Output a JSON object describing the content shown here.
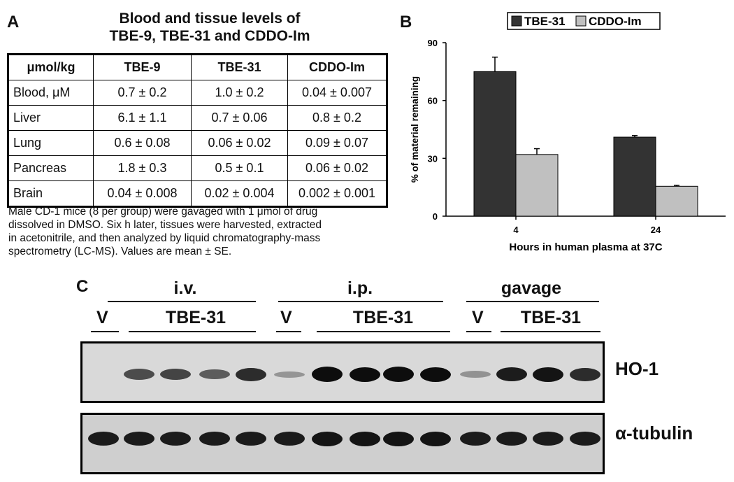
{
  "panel_a": {
    "letter": "A",
    "title_line1": "Blood and tissue levels of",
    "title_line2": "TBE-9, TBE-31 and CDDO-Im",
    "headers": [
      "μmol/kg",
      "TBE-9",
      "TBE-31",
      "CDDO-Im"
    ],
    "rows": [
      {
        "label": "Blood, μM",
        "values": [
          "0.7 ± 0.2",
          "1.0 ± 0.2",
          "0.04 ± 0.007"
        ]
      },
      {
        "label": "Liver",
        "values": [
          "6.1 ± 1.1",
          "0.7 ± 0.06",
          "0.8 ± 0.2"
        ]
      },
      {
        "label": "Lung",
        "values": [
          "0.6 ± 0.08",
          "0.06 ± 0.02",
          "0.09 ± 0.07"
        ]
      },
      {
        "label": "Pancreas",
        "values": [
          "1.8 ± 0.3",
          "0.5 ± 0.1",
          "0.06 ± 0.02"
        ]
      },
      {
        "label": "Brain",
        "values": [
          "0.04 ± 0.008",
          "0.02 ± 0.004",
          "0.002 ± 0.001"
        ]
      }
    ],
    "caption_lines": [
      "Male CD-1 mice (8 per group) were gavaged with 1 μmol of drug",
      "dissolved in DMSO.  Six h later, tissues were harvested, extracted",
      "in acetonitrile, and then analyzed by liquid chromatography-mass",
      "spectrometry (LC-MS).  Values are mean ± SE."
    ]
  },
  "panel_b": {
    "letter": "B"
  },
  "chart_data": {
    "type": "bar",
    "categories": [
      "4",
      "24"
    ],
    "series": [
      {
        "name": "TBE-31",
        "color": "#333333",
        "values": [
          75,
          41
        ],
        "errors": [
          7.5,
          0.8
        ]
      },
      {
        "name": "CDDO-Im",
        "color": "#c0c0c0",
        "values": [
          32,
          15.5
        ],
        "errors": [
          3,
          0.5
        ]
      }
    ],
    "xlabel": "Hours in human plasma at 37C",
    "ylabel": "% of material remaining",
    "yticks": [
      0,
      30,
      60,
      90
    ],
    "ylim": [
      0,
      90
    ],
    "legend_position": "top"
  },
  "panel_c": {
    "letter": "C",
    "groups": [
      "i.v.",
      "i.p.",
      "gavage"
    ],
    "lane_labels": {
      "vehicle": "V",
      "drug": "TBE-31"
    },
    "blots": [
      {
        "label": "HO-1",
        "lane_intensities": [
          0.0,
          0.55,
          0.6,
          0.45,
          0.75,
          0.1,
          1.0,
          0.95,
          1.0,
          0.95,
          0.12,
          0.85,
          0.9,
          0.75
        ]
      },
      {
        "label": "α-tubulin",
        "lane_intensities": [
          0.85,
          0.85,
          0.85,
          0.85,
          0.85,
          0.85,
          0.9,
          0.9,
          0.9,
          0.9,
          0.85,
          0.85,
          0.85,
          0.85
        ]
      }
    ]
  }
}
